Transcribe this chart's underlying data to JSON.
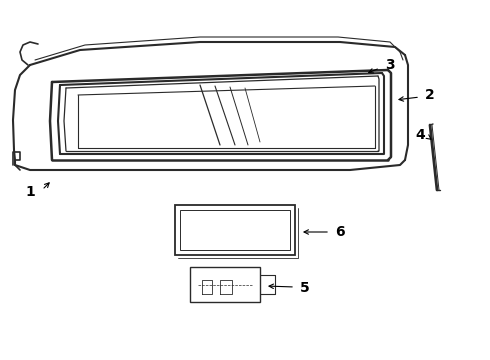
{
  "background_color": "#ffffff",
  "line_color": "#2a2a2a",
  "fig_width": 4.9,
  "fig_height": 3.6,
  "dpi": 100,
  "label_fontsize": 10,
  "label_fontweight": "bold"
}
